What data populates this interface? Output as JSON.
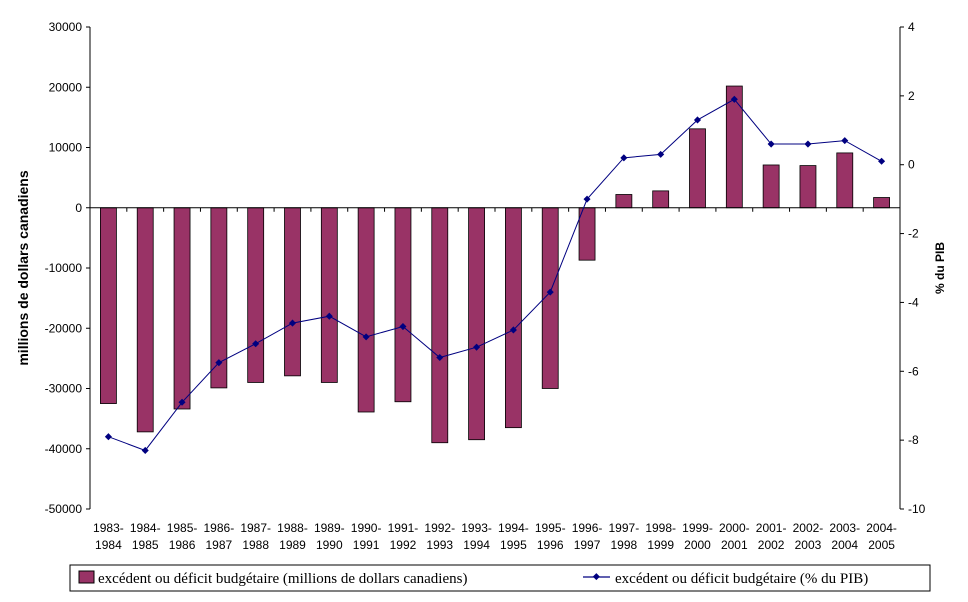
{
  "chart_data": {
    "type": "bar+line",
    "categories": [
      "1983-1984",
      "1984-1985",
      "1985-1986",
      "1986-1987",
      "1987-1988",
      "1988-1989",
      "1989-1990",
      "1990-1991",
      "1991-1992",
      "1992-1993",
      "1993-1994",
      "1994-1995",
      "1995-1996",
      "1996-1997",
      "1997-1998",
      "1998-1999",
      "1999-2000",
      "2000-2001",
      "2001-2002",
      "2002-2003",
      "2003-2004",
      "2004-2005"
    ],
    "series": [
      {
        "name": "excédent ou déficit budgétaire (millions de dollars canadiens)",
        "type": "bar",
        "axis": "left",
        "color": "#993366",
        "values": [
          -32500,
          -37200,
          -33400,
          -29900,
          -29000,
          -27900,
          -29000,
          -33900,
          -32200,
          -39000,
          -38500,
          -36500,
          -30000,
          -8700,
          2200,
          2800,
          13100,
          20200,
          7100,
          7000,
          9100,
          1700
        ]
      },
      {
        "name": "excédent ou déficit budgétaire (% du PIB)",
        "type": "line",
        "axis": "right",
        "color": "#000080",
        "values": [
          -7.9,
          -8.3,
          -6.9,
          -5.75,
          -5.2,
          -4.6,
          -4.4,
          -5.0,
          -4.7,
          -5.6,
          -5.3,
          -4.8,
          -3.7,
          -1.0,
          0.2,
          0.3,
          1.3,
          1.9,
          0.6,
          0.6,
          0.7,
          0.1
        ]
      }
    ],
    "ylabel": "millions de dollars canadiens",
    "y2label": "% du PIB",
    "ylim": [
      -50000,
      30000
    ],
    "y2lim": [
      -10,
      4
    ],
    "yticks": [
      30000,
      20000,
      10000,
      0,
      -10000,
      -20000,
      -30000,
      -40000,
      -50000
    ],
    "y2ticks": [
      4,
      2,
      0,
      -2,
      -4,
      -6,
      -8,
      -10
    ],
    "grid": false,
    "legend": "bottom"
  }
}
